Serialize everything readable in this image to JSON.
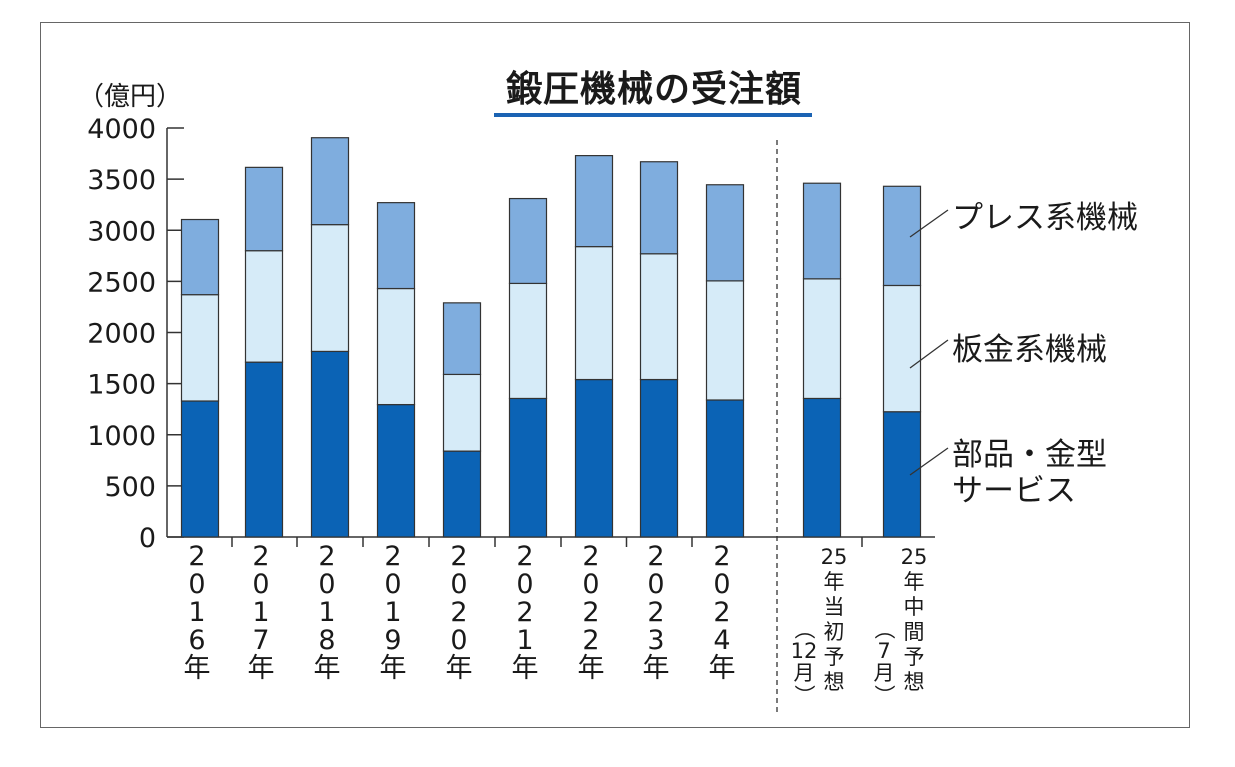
{
  "chart_data": {
    "type": "bar",
    "stacked": true,
    "title": "鍛圧機械の受注額",
    "ylabel": "（億円）",
    "ylim": [
      0,
      4000
    ],
    "yticks": [
      "0",
      "500",
      "1000",
      "1500",
      "2000",
      "2500",
      "3000",
      "3500",
      "4000"
    ],
    "categories": [
      "2016年",
      "2017年",
      "2018年",
      "2019年",
      "2020年",
      "2021年",
      "2022年",
      "2023年",
      "2024年",
      "25年当初予想（12月）",
      "25年中間予想（7月）"
    ],
    "category_lines": [
      [
        "2",
        "0",
        "1",
        "6",
        "年"
      ],
      [
        "2",
        "0",
        "1",
        "7",
        "年"
      ],
      [
        "2",
        "0",
        "1",
        "8",
        "年"
      ],
      [
        "2",
        "0",
        "1",
        "9",
        "年"
      ],
      [
        "2",
        "0",
        "2",
        "0",
        "年"
      ],
      [
        "2",
        "0",
        "2",
        "1",
        "年"
      ],
      [
        "2",
        "0",
        "2",
        "2",
        "年"
      ],
      [
        "2",
        "0",
        "2",
        "3",
        "年"
      ],
      [
        "2",
        "0",
        "2",
        "4",
        "年"
      ],
      {
        "main": [
          "25",
          "年",
          "当",
          "初",
          "予",
          "想"
        ],
        "paren": [
          "（",
          "12",
          "月",
          "）"
        ]
      },
      {
        "main": [
          "25",
          "年",
          "中",
          "間",
          "予",
          "想"
        ],
        "paren": [
          "（",
          "7",
          "月",
          "）"
        ]
      }
    ],
    "series": [
      {
        "name": "部品・金型サービス",
        "label_lines": [
          "部品・金型",
          "サービス"
        ],
        "color": "#0b63b5",
        "values": [
          1330,
          1710,
          1815,
          1295,
          840,
          1355,
          1540,
          1540,
          1340,
          1355,
          1225
        ]
      },
      {
        "name": "板金系機械",
        "label_lines": [
          "板金系機械"
        ],
        "color": "#d6ebf8",
        "values": [
          1040,
          1090,
          1240,
          1135,
          750,
          1125,
          1300,
          1230,
          1165,
          1170,
          1235
        ]
      },
      {
        "name": "プレス系機械",
        "label_lines": [
          "プレス系機械"
        ],
        "color": "#7fadde",
        "values": [
          735,
          815,
          850,
          840,
          700,
          830,
          890,
          900,
          940,
          935,
          970
        ]
      }
    ],
    "separator_after_index": 8,
    "grid": false,
    "legend": "right, inline labels with leader lines"
  }
}
